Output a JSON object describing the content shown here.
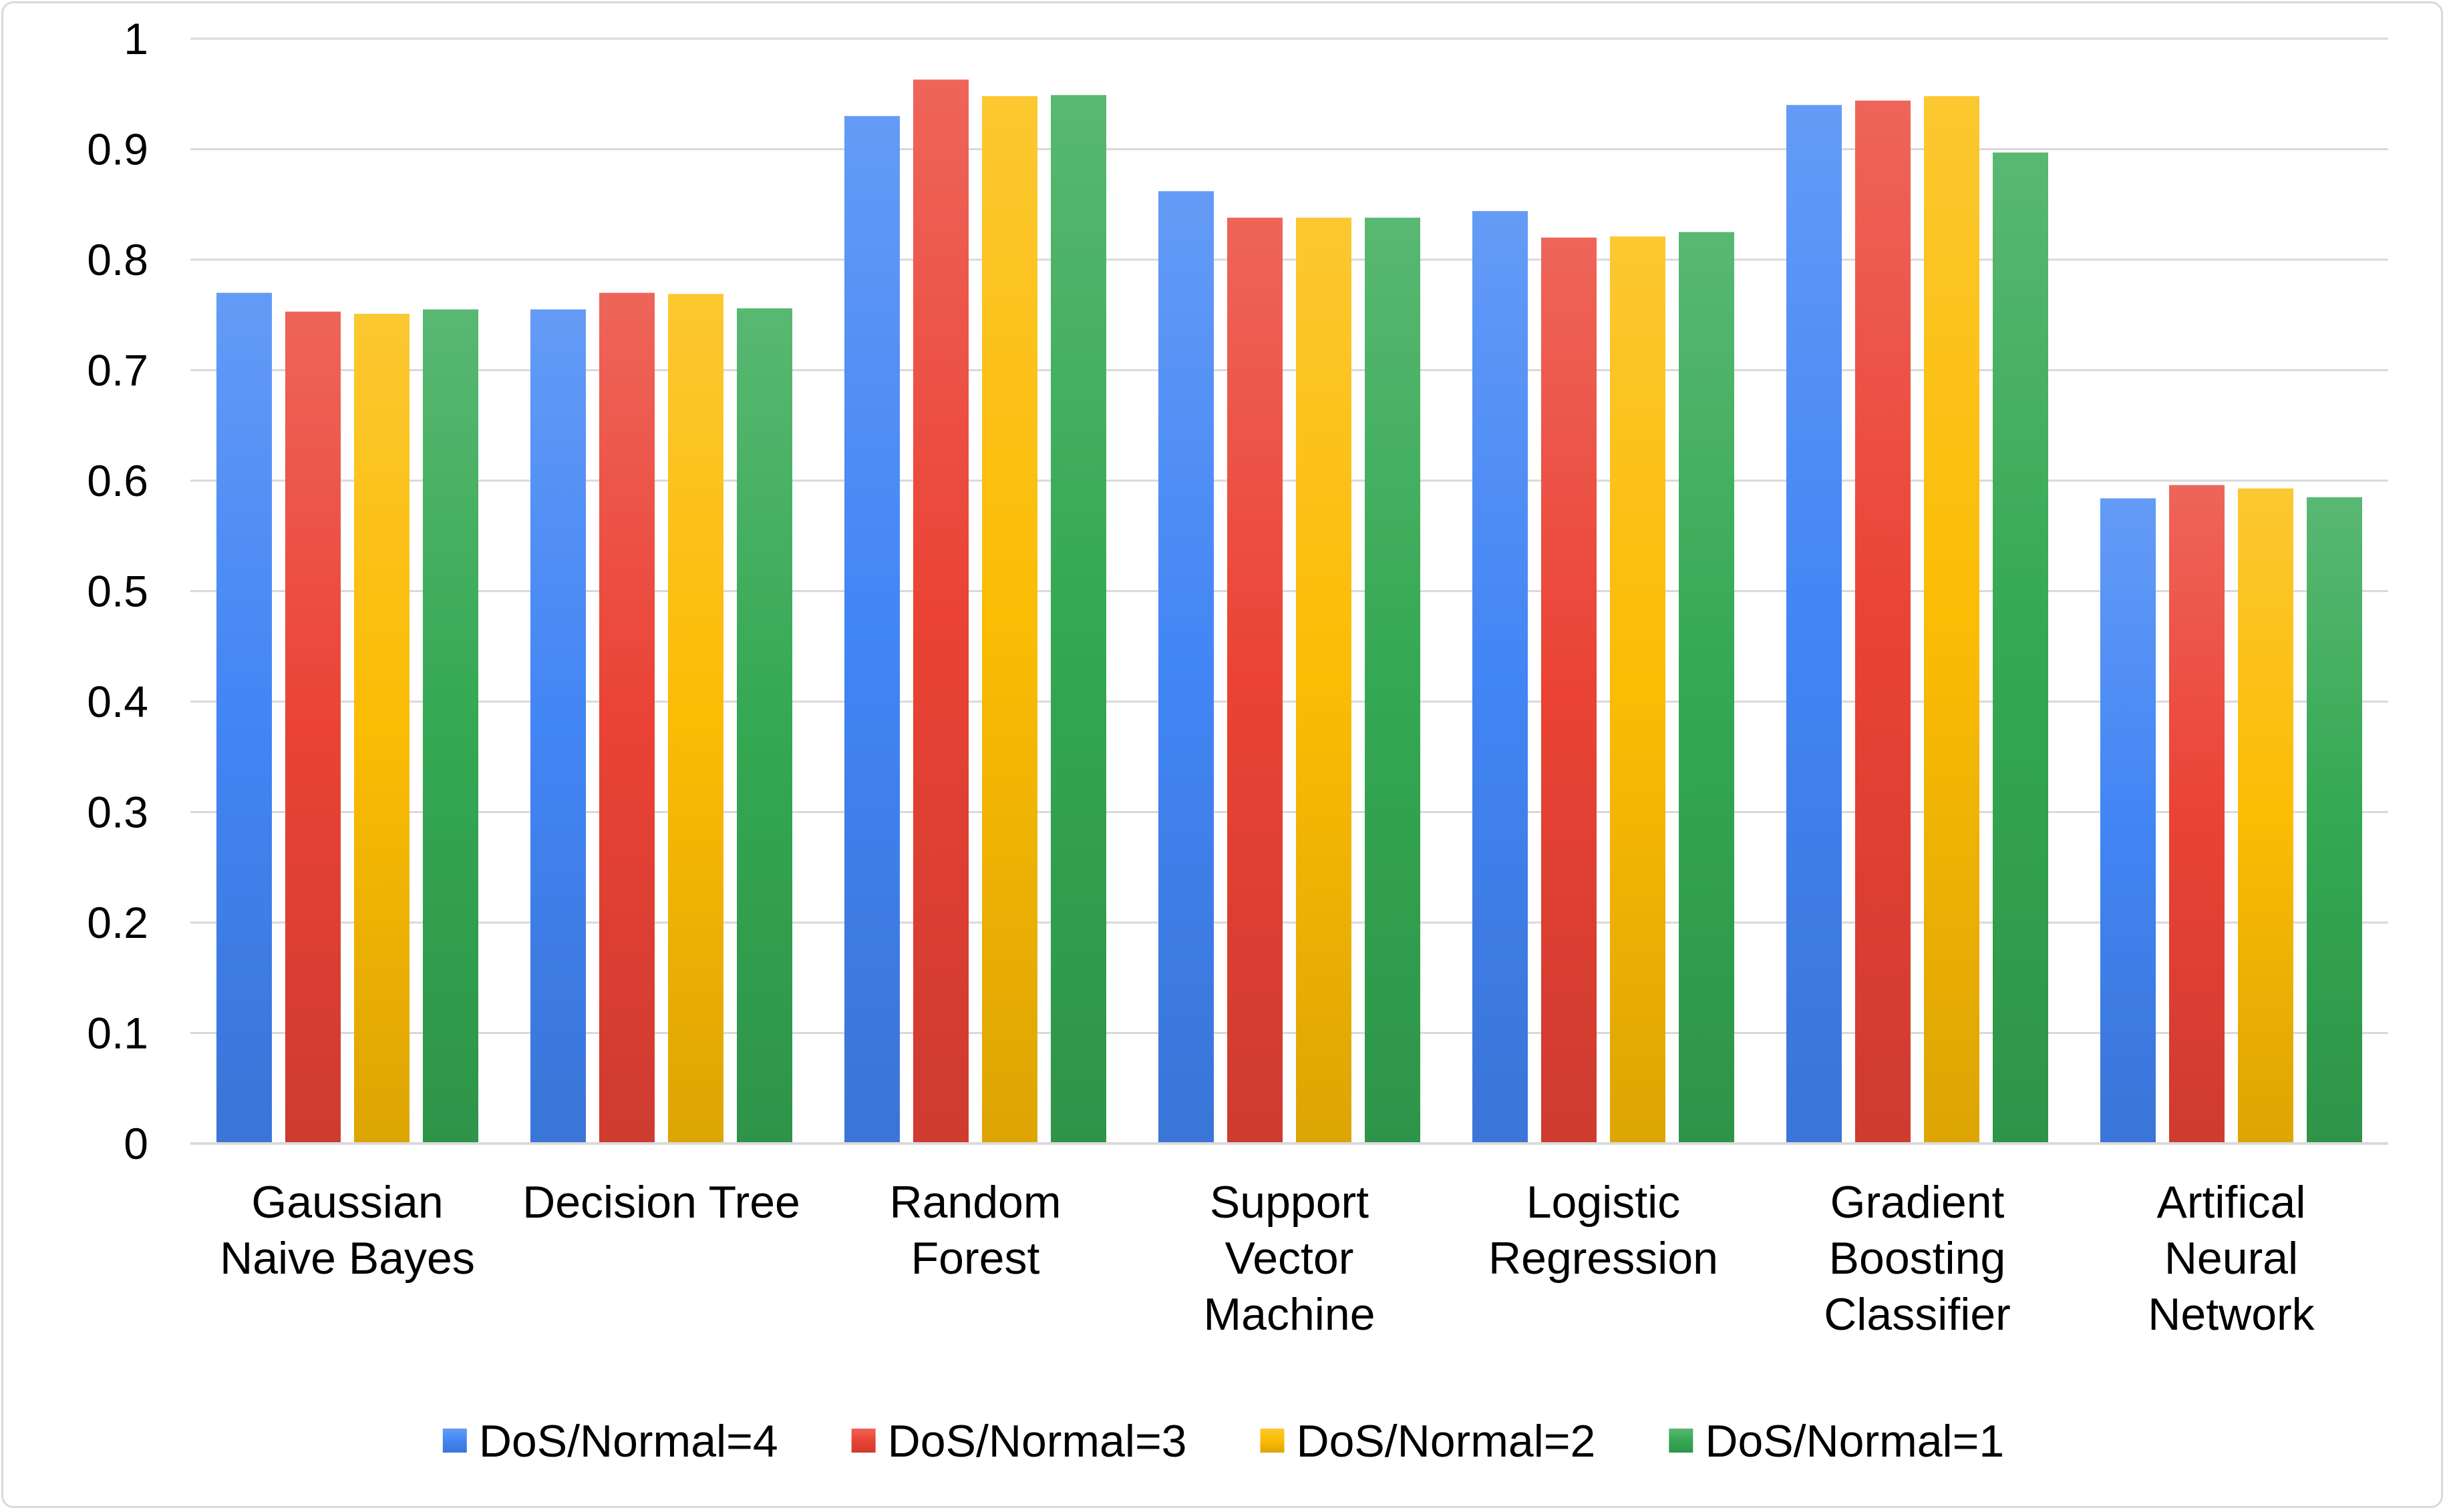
{
  "chart_data": {
    "type": "bar",
    "title": "",
    "xlabel": "",
    "ylabel": "",
    "ylim": [
      0,
      1
    ],
    "yticks": [
      "0",
      "0.1",
      "0.2",
      "0.3",
      "0.4",
      "0.5",
      "0.6",
      "0.7",
      "0.8",
      "0.9",
      "1"
    ],
    "grid": true,
    "legend_position": "bottom",
    "categories": [
      [
        "Gaussian",
        "Naive Bayes"
      ],
      [
        "Decision Tree"
      ],
      [
        "Random",
        "Forest"
      ],
      [
        "Support",
        "Vector",
        "Machine"
      ],
      [
        "Logistic",
        "Regression"
      ],
      [
        "Gradient",
        "Boosting",
        "Classifier"
      ],
      [
        "Artifical",
        "Neural",
        "Network"
      ]
    ],
    "series": [
      {
        "name": "DoS/Normal=4",
        "color": "#4285f4",
        "values": [
          0.77,
          0.755,
          0.93,
          0.862,
          0.844,
          0.94,
          0.584
        ]
      },
      {
        "name": "DoS/Normal=3",
        "color": "#ea4335",
        "values": [
          0.753,
          0.77,
          0.963,
          0.838,
          0.82,
          0.944,
          0.596
        ]
      },
      {
        "name": "DoS/Normal=2",
        "color": "#fbbc04",
        "values": [
          0.751,
          0.769,
          0.948,
          0.838,
          0.821,
          0.948,
          0.593
        ]
      },
      {
        "name": "DoS/Normal=1",
        "color": "#34a853",
        "values": [
          0.755,
          0.756,
          0.949,
          0.838,
          0.825,
          0.897,
          0.585
        ]
      }
    ]
  }
}
